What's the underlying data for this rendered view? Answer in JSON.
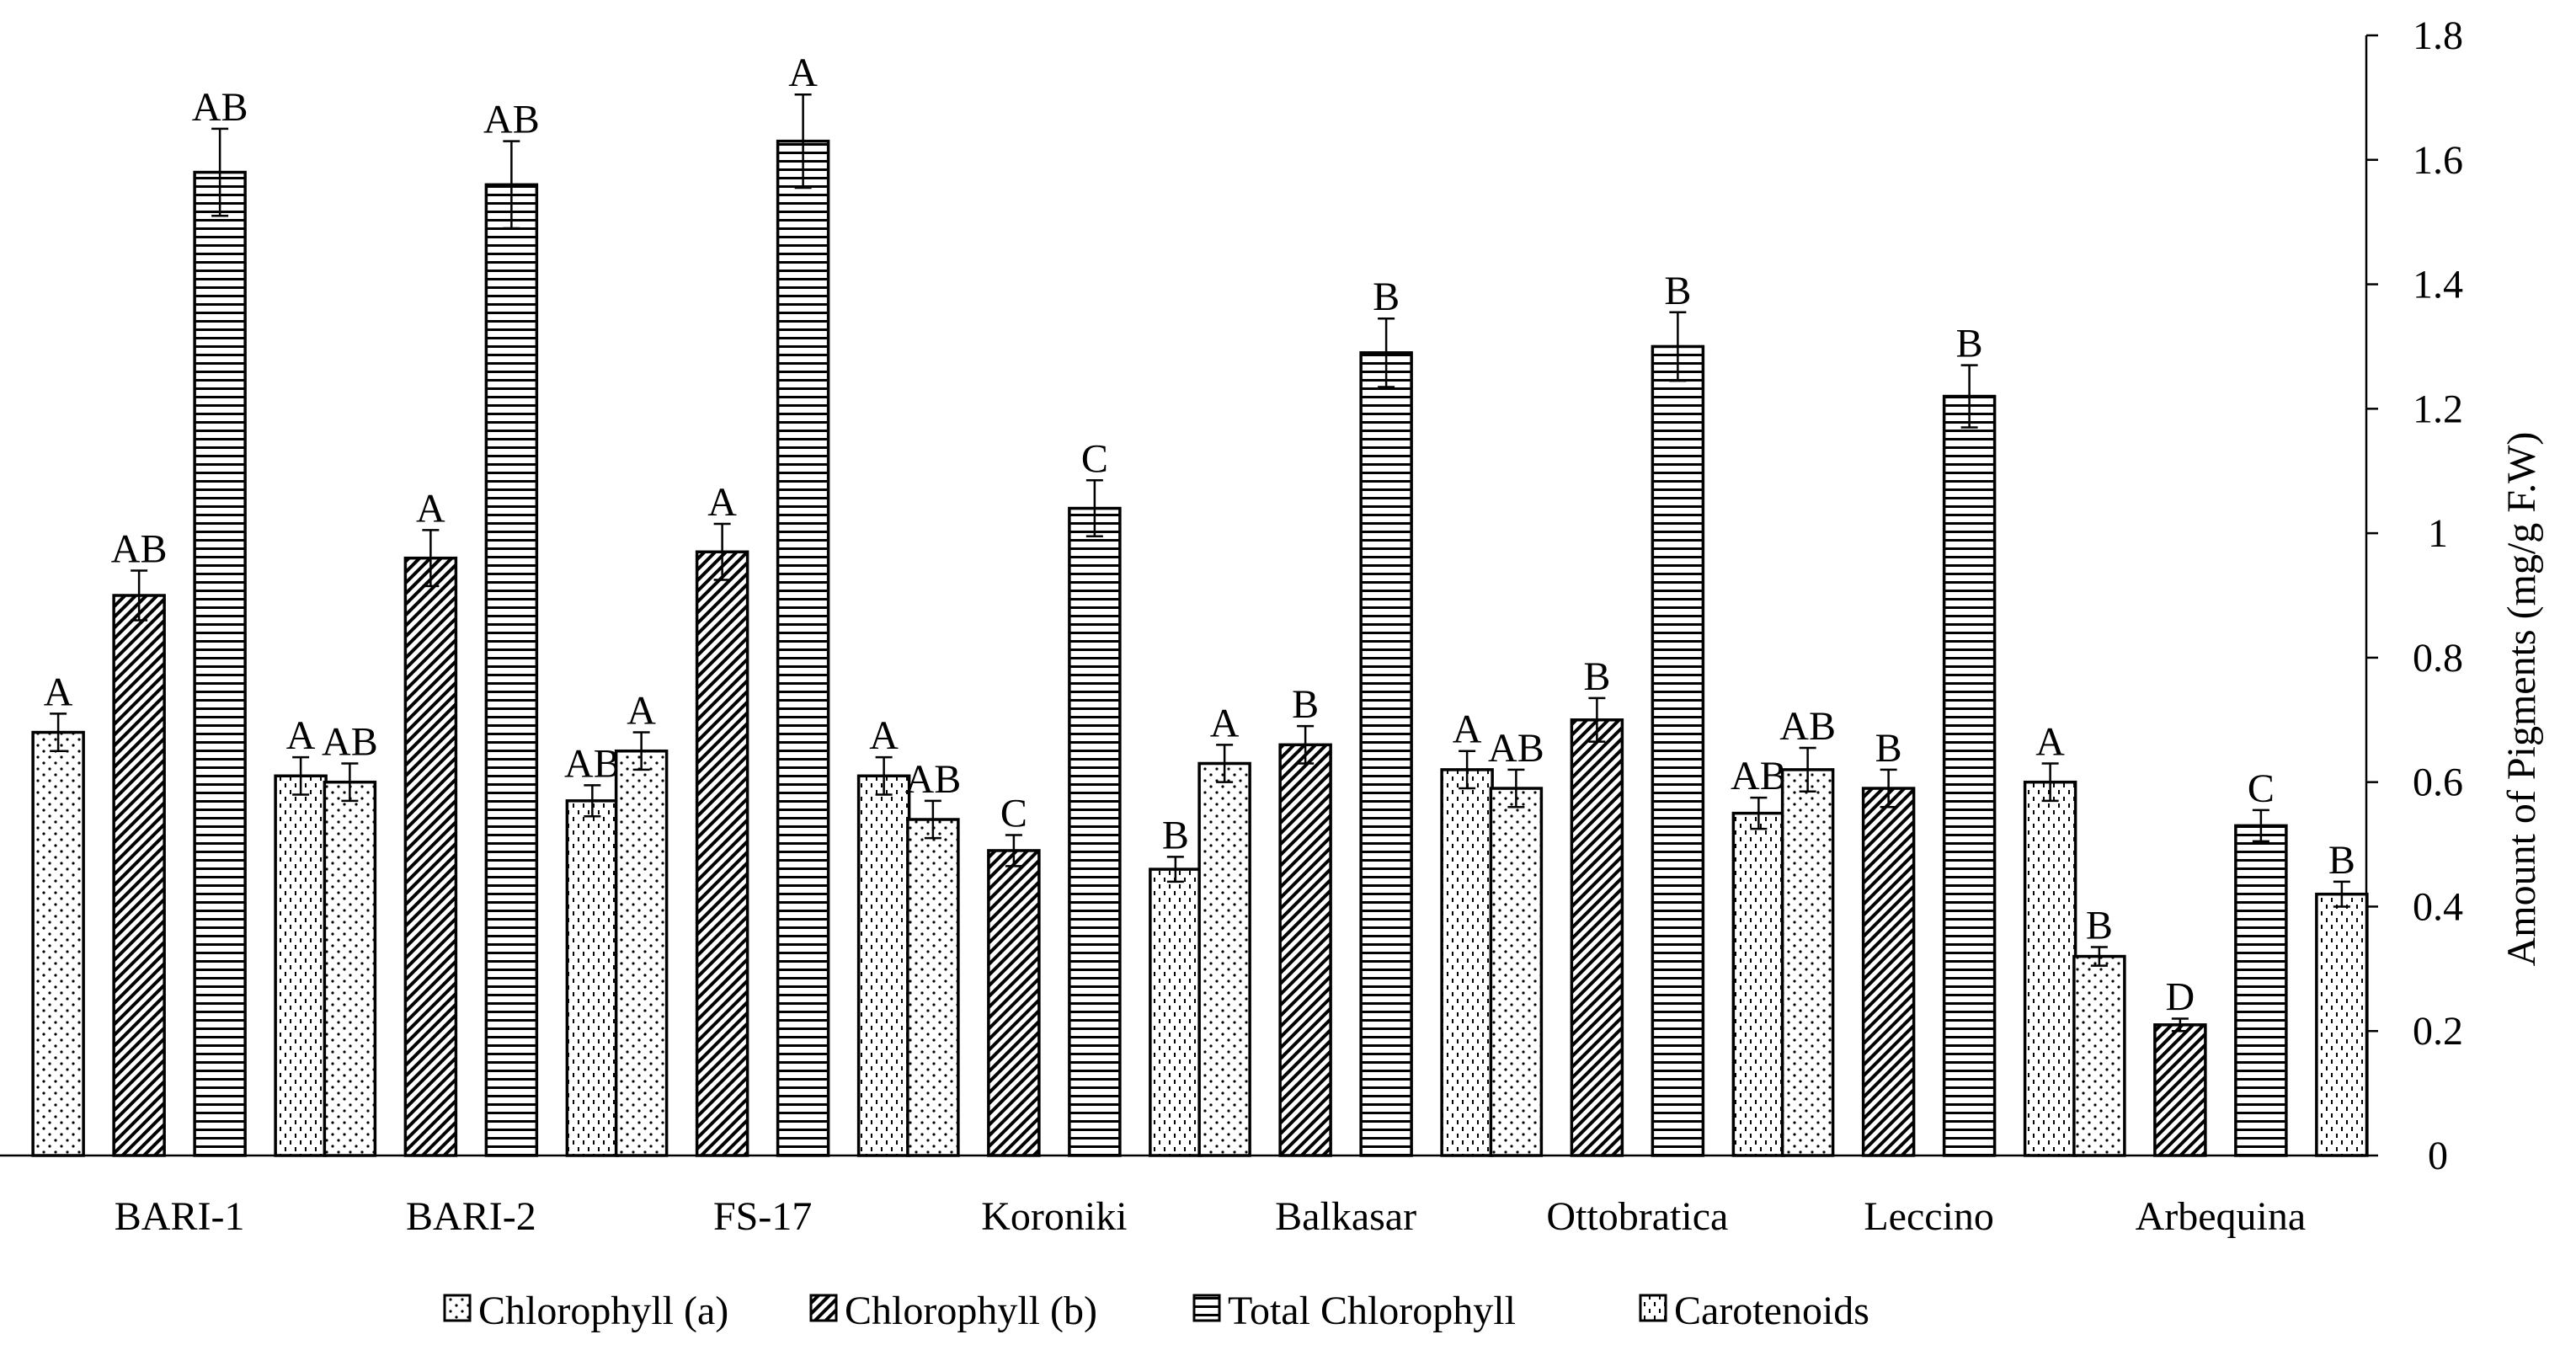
{
  "chart_data": {
    "type": "bar",
    "title": "",
    "xlabel": "",
    "ylabel": "Amount of Pigments (mg/g F.W)",
    "ylim": [
      0,
      1.8
    ],
    "yticks": [
      "0",
      "0.2",
      "0.4",
      "0.6",
      "0.8",
      "1",
      "1.2",
      "1.4",
      "1.6",
      "1.8"
    ],
    "ytick_values": [
      0,
      0.2,
      0.4,
      0.6,
      0.8,
      1.0,
      1.2,
      1.4,
      1.6,
      1.8
    ],
    "y_axis_position": "right",
    "legend_position": "bottom",
    "grid": false,
    "categories": [
      "BARI-1",
      "BARI-2",
      "FS-17",
      "Koroniki",
      "Balkasar",
      "Ottobratica",
      "Leccino",
      "Arbequina"
    ],
    "series": [
      {
        "name": "Chlorophyll (a)",
        "pattern": "dots",
        "values": [
          0.68,
          0.6,
          0.65,
          0.54,
          0.63,
          0.59,
          0.62,
          0.32
        ],
        "errors": [
          0.03,
          0.03,
          0.03,
          0.03,
          0.03,
          0.03,
          0.035,
          0.015
        ],
        "significance": [
          "A",
          "AB",
          "A",
          "AB",
          "A",
          "AB",
          "AB",
          "B"
        ]
      },
      {
        "name": "Chlorophyll (b)",
        "pattern": "diagonal",
        "values": [
          0.9,
          0.96,
          0.97,
          0.49,
          0.66,
          0.7,
          0.59,
          0.21
        ],
        "errors": [
          0.04,
          0.045,
          0.045,
          0.025,
          0.03,
          0.035,
          0.03,
          0.01
        ],
        "significance": [
          "AB",
          "A",
          "A",
          "C",
          "B",
          "B",
          "B",
          "D"
        ]
      },
      {
        "name": "Total Chlorophyll",
        "pattern": "horizontal",
        "values": [
          1.58,
          1.56,
          1.63,
          1.04,
          1.29,
          1.3,
          1.22,
          0.53
        ],
        "errors": [
          0.07,
          0.07,
          0.075,
          0.045,
          0.055,
          0.055,
          0.05,
          0.025
        ],
        "significance": [
          "AB",
          "AB",
          "A",
          "C",
          "B",
          "B",
          "B",
          "C"
        ]
      },
      {
        "name": "Carotenoids",
        "pattern": "dashes",
        "values": [
          0.61,
          0.57,
          0.61,
          0.46,
          0.62,
          0.55,
          0.6,
          0.42
        ],
        "errors": [
          0.03,
          0.025,
          0.03,
          0.02,
          0.03,
          0.025,
          0.03,
          0.02
        ],
        "significance": [
          "A",
          "AB",
          "A",
          "B",
          "A",
          "AB",
          "A",
          "B"
        ]
      }
    ]
  }
}
